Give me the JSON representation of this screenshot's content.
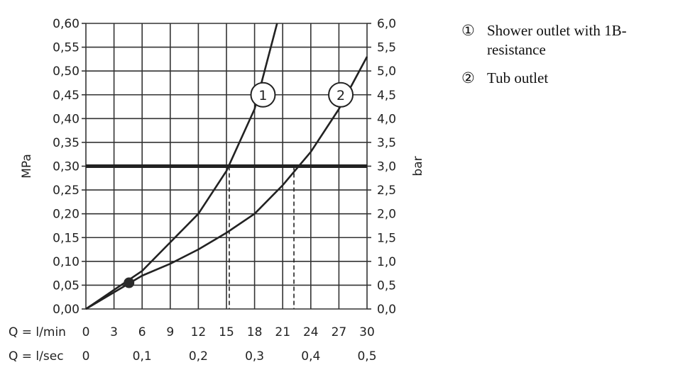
{
  "chart_data": {
    "type": "line",
    "title": "",
    "ylabel_left": "MPa",
    "ylabel_right": "bar",
    "xlabel_rows": [
      {
        "label": "Q = l/min",
        "ticks": [
          "0",
          "3",
          "6",
          "9",
          "12",
          "15",
          "18",
          "21",
          "24",
          "27",
          "30"
        ]
      },
      {
        "label": "Q = l/sec",
        "ticks": [
          "0",
          "0,1",
          "0,2",
          "0,3",
          "0,4",
          "0,5"
        ]
      }
    ],
    "xlim": [
      0,
      30
    ],
    "ylim": [
      0,
      0.6
    ],
    "y_ticks_left": [
      "0,00",
      "0,05",
      "0,10",
      "0,15",
      "0,20",
      "0,25",
      "0,30",
      "0,35",
      "0,40",
      "0,45",
      "0,50",
      "0,55",
      "0,60"
    ],
    "y_ticks_right": [
      "0,0",
      "0,5",
      "1,0",
      "1,5",
      "2,0",
      "2,5",
      "3,0",
      "3,5",
      "4,0",
      "4,5",
      "5,0",
      "5,5",
      "6,0"
    ],
    "grid": true,
    "series": [
      {
        "marker": "1",
        "x": [
          0,
          3,
          6,
          9,
          12,
          15,
          18,
          20.4
        ],
        "y": [
          0,
          0.04,
          0.08,
          0.14,
          0.2,
          0.29,
          0.42,
          0.6
        ]
      },
      {
        "marker": "2",
        "x": [
          0,
          3,
          6,
          9,
          12,
          15,
          18,
          21,
          24,
          27,
          30
        ],
        "y": [
          0,
          0.035,
          0.07,
          0.095,
          0.125,
          0.16,
          0.2,
          0.26,
          0.33,
          0.42,
          0.53
        ]
      }
    ],
    "reference_line": {
      "y": 0.3
    },
    "intersections": [
      {
        "series": "1",
        "x": 15.3,
        "y": 0.3
      },
      {
        "series": "2",
        "x": 22.2,
        "y": 0.3
      }
    ],
    "marker_point": {
      "x": 4.6,
      "y": 0.055
    }
  },
  "legend": {
    "items": [
      {
        "num": "①",
        "text": "Shower outlet with 1B-resistance"
      },
      {
        "num": "②",
        "text": "Tub outlet"
      }
    ]
  }
}
